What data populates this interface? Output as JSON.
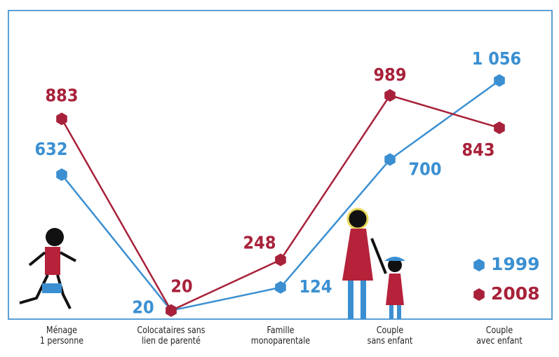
{
  "chart_data": {
    "type": "line",
    "categories": [
      "Ménage\n1 personne",
      "Colocataires sans\nlien de parenté",
      "Famille\nmonoparentale",
      "Couple\nsans enfant",
      "Couple\navec enfant"
    ],
    "series": [
      {
        "name": "1999",
        "color": "#3b8fd1",
        "values": [
          632,
          20,
          124,
          700,
          1056
        ],
        "value_labels": [
          "632",
          "20",
          "124",
          "700",
          "1 056"
        ]
      },
      {
        "name": "2008",
        "color": "#a8213a",
        "values": [
          883,
          20,
          248,
          989,
          843
        ],
        "value_labels": [
          "883",
          "20",
          "248",
          "989",
          "843"
        ]
      }
    ],
    "ylim": [
      0,
      1150
    ]
  }
}
